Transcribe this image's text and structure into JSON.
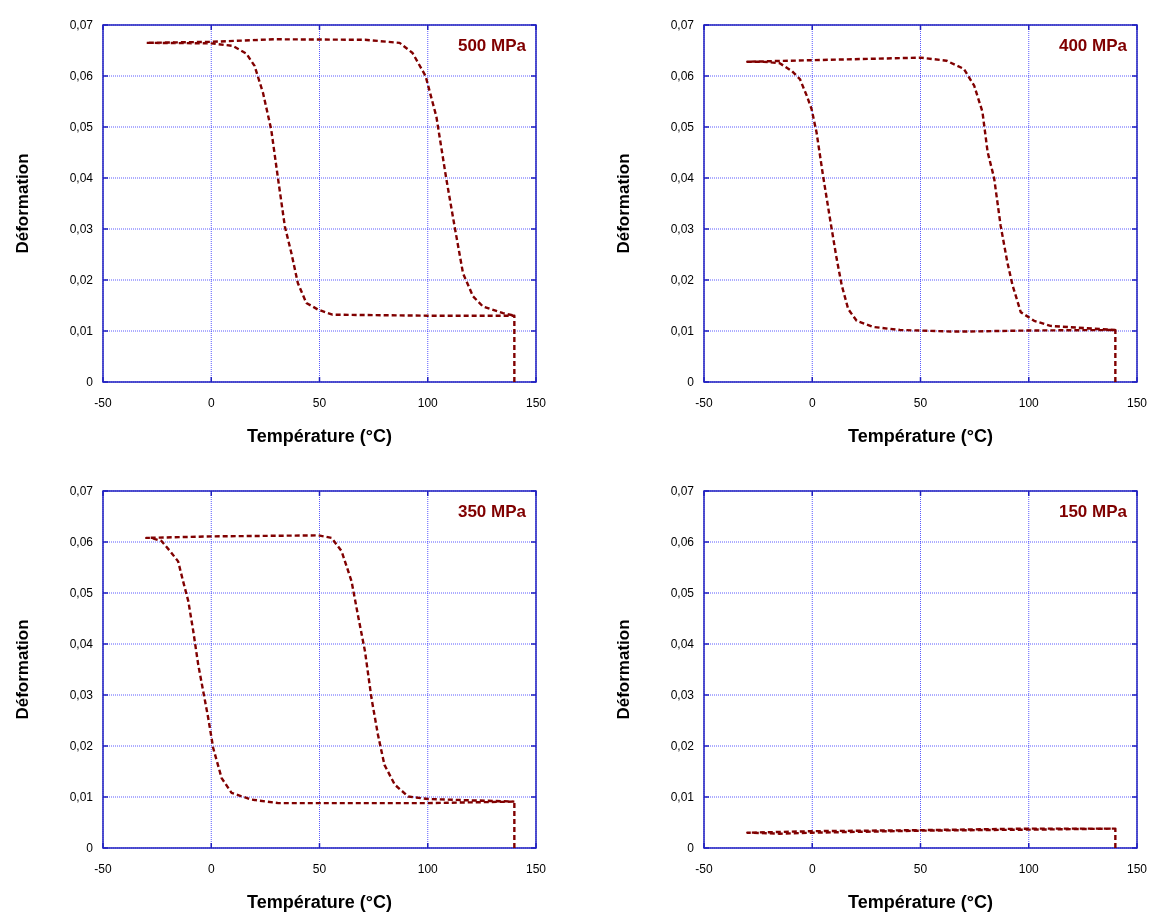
{
  "chart_data": [
    {
      "type": "line",
      "xlabel": "Température (°C)",
      "ylabel": "Déformation",
      "annotations": [
        "500 MPa"
      ],
      "xlim": [
        -50,
        150
      ],
      "ylim": [
        0,
        0.07
      ],
      "xticks": [
        -50,
        0,
        50,
        100,
        150
      ],
      "yticks": [
        {
          "value": 0,
          "label": "0"
        },
        {
          "value": 0.01,
          "label": "0,01"
        },
        {
          "value": 0.02,
          "label": "0,02"
        },
        {
          "value": 0.03,
          "label": "0,03"
        },
        {
          "value": 0.04,
          "label": "0,04"
        },
        {
          "value": 0.05,
          "label": "0,05"
        },
        {
          "value": 0.06,
          "label": "0,06"
        },
        {
          "value": 0.07,
          "label": "0,07"
        }
      ],
      "grid": true,
      "line_style": "dashed",
      "series": [
        {
          "color": "#800000",
          "x": [
            140,
            140,
            100,
            56,
            49.3,
            43.9,
            40,
            37,
            34,
            30.8,
            27.7,
            23.9,
            20,
            16.2,
            10,
            0,
            -30,
            0,
            29,
            71,
            87,
            93,
            99,
            104,
            108.5,
            112.4,
            116.3,
            120.9,
            125.5,
            134.8,
            140
          ],
          "values": [
            0,
            0.013,
            0.013,
            0.0132,
            0.0142,
            0.0155,
            0.0194,
            0.0253,
            0.0305,
            0.04,
            0.0495,
            0.0567,
            0.062,
            0.0644,
            0.0659,
            0.0664,
            0.0665,
            0.0667,
            0.0672,
            0.0671,
            0.0665,
            0.0645,
            0.06,
            0.052,
            0.04,
            0.0305,
            0.0213,
            0.0168,
            0.0148,
            0.0135,
            0.013
          ]
        }
      ]
    },
    {
      "type": "line",
      "xlabel": "Température (°C)",
      "ylabel": "Déformation",
      "annotations": [
        "400 MPa"
      ],
      "xlim": [
        -50,
        150
      ],
      "ylim": [
        0,
        0.07
      ],
      "xticks": [
        -50,
        0,
        50,
        100,
        150
      ],
      "yticks": [
        {
          "value": 0,
          "label": "0"
        },
        {
          "value": 0.01,
          "label": "0,01"
        },
        {
          "value": 0.02,
          "label": "0,02"
        },
        {
          "value": 0.03,
          "label": "0,03"
        },
        {
          "value": 0.04,
          "label": "0,04"
        },
        {
          "value": 0.05,
          "label": "0,05"
        },
        {
          "value": 0.06,
          "label": "0,06"
        },
        {
          "value": 0.07,
          "label": "0,07"
        }
      ],
      "grid": true,
      "line_style": "dashed",
      "series": [
        {
          "color": "#800000",
          "x": [
            140,
            140,
            100,
            71.6,
            64,
            40.5,
            28,
            20.5,
            16.6,
            13.6,
            11.3,
            8.2,
            5,
            2,
            -0.3,
            -2.6,
            -5.7,
            -9.5,
            -15,
            -22.6,
            -30,
            0,
            50,
            62,
            70,
            74.8,
            78.6,
            81,
            84,
            87,
            90.1,
            92.5,
            96.3,
            102.5,
            110,
            140
          ],
          "values": [
            0,
            0.0102,
            0.0101,
            0.0099,
            0.0099,
            0.0102,
            0.0108,
            0.012,
            0.0143,
            0.019,
            0.0241,
            0.032,
            0.0404,
            0.0489,
            0.0535,
            0.0562,
            0.0594,
            0.061,
            0.0625,
            0.0628,
            0.0628,
            0.0631,
            0.0636,
            0.063,
            0.0614,
            0.0581,
            0.053,
            0.0451,
            0.04,
            0.0307,
            0.0235,
            0.019,
            0.0137,
            0.012,
            0.011,
            0.0102
          ]
        }
      ]
    },
    {
      "type": "line",
      "xlabel": "Température (°C)",
      "ylabel": "Déformation",
      "annotations": [
        "350 MPa"
      ],
      "xlim": [
        -50,
        150
      ],
      "ylim": [
        0,
        0.07
      ],
      "xticks": [
        -50,
        0,
        50,
        100,
        150
      ],
      "yticks": [
        {
          "value": 0,
          "label": "0"
        },
        {
          "value": 0.01,
          "label": "0,01"
        },
        {
          "value": 0.02,
          "label": "0,02"
        },
        {
          "value": 0.03,
          "label": "0,03"
        },
        {
          "value": 0.04,
          "label": "0,04"
        },
        {
          "value": 0.05,
          "label": "0,05"
        },
        {
          "value": 0.06,
          "label": "0,06"
        },
        {
          "value": 0.07,
          "label": "0,07"
        }
      ],
      "grid": true,
      "line_style": "dashed",
      "series": [
        {
          "color": "#800000",
          "x": [
            140,
            140,
            100,
            31,
            18.5,
            9.4,
            4.8,
            0.9,
            -1.4,
            -3.7,
            -6,
            -8.3,
            -10.6,
            -13,
            -15.3,
            -19,
            -23,
            -27.6,
            -30,
            0,
            49.5,
            55.6,
            60.2,
            64.8,
            68,
            71,
            74,
            77,
            80,
            84.8,
            91,
            100.2,
            140
          ],
          "values": [
            0,
            0.0091,
            0.0088,
            0.0088,
            0.0095,
            0.0108,
            0.0137,
            0.0196,
            0.0255,
            0.0307,
            0.0359,
            0.0425,
            0.0484,
            0.0523,
            0.0562,
            0.0582,
            0.0602,
            0.0608,
            0.0608,
            0.0611,
            0.0613,
            0.0608,
            0.0582,
            0.0523,
            0.0451,
            0.0386,
            0.0294,
            0.0222,
            0.0163,
            0.0124,
            0.0101,
            0.0096,
            0.0091
          ]
        }
      ]
    },
    {
      "type": "line",
      "xlabel": "Température (°C)",
      "ylabel": "Déformation",
      "annotations": [
        "150 MPa"
      ],
      "xlim": [
        -50,
        150
      ],
      "ylim": [
        0,
        0.07
      ],
      "xticks": [
        -50,
        0,
        50,
        100,
        150
      ],
      "yticks": [
        {
          "value": 0,
          "label": "0"
        },
        {
          "value": 0.01,
          "label": "0,01"
        },
        {
          "value": 0.02,
          "label": "0,02"
        },
        {
          "value": 0.03,
          "label": "0,03"
        },
        {
          "value": 0.04,
          "label": "0,04"
        },
        {
          "value": 0.05,
          "label": "0,05"
        },
        {
          "value": 0.06,
          "label": "0,06"
        },
        {
          "value": 0.07,
          "label": "0,07"
        }
      ],
      "grid": true,
      "line_style": "dashed",
      "series": [
        {
          "color": "#800000",
          "x": [
            140,
            140,
            100,
            50,
            0,
            -15,
            -30,
            0,
            50,
            100,
            140
          ],
          "values": [
            0,
            0.0038,
            0.0036,
            0.0034,
            0.003,
            0.0028,
            0.003,
            0.0033,
            0.0035,
            0.0038,
            0.0038
          ]
        }
      ]
    }
  ]
}
